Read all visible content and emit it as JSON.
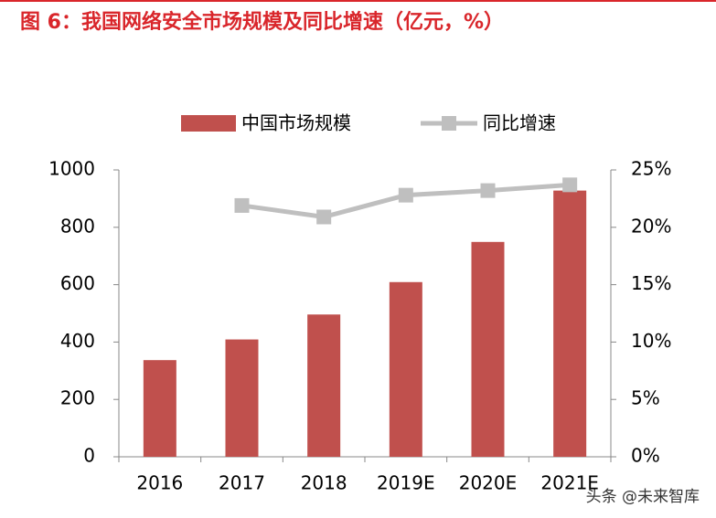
{
  "chart_data": {
    "type": "bar",
    "title": "图 6：我国网络安全市场规模及同比增速（亿元，%）",
    "categories": [
      "2016",
      "2017",
      "2018",
      "2019E",
      "2020E",
      "2021E"
    ],
    "series": [
      {
        "name": "中国市场规模",
        "type": "bar",
        "color": "#c0504d",
        "values": [
          337,
          409,
          496,
          609,
          749,
          928
        ]
      },
      {
        "name": "同比增速",
        "type": "line",
        "axis": "y2",
        "color": "#bfbfbf",
        "values": [
          null,
          21.9,
          20.9,
          22.8,
          23.2,
          23.7
        ]
      }
    ],
    "ylim": [
      0,
      1000
    ],
    "yticks": [
      0,
      200,
      400,
      600,
      800,
      1000
    ],
    "y2lim": [
      0,
      25
    ],
    "y2ticks": [
      {
        "value": 0,
        "label": "0%"
      },
      {
        "value": 5,
        "label": "5%"
      },
      {
        "value": 10,
        "label": "10%"
      },
      {
        "value": 15,
        "label": "15%"
      },
      {
        "value": 20,
        "label": "20%"
      },
      {
        "value": 25,
        "label": "25%"
      }
    ],
    "legend": "top",
    "watermark": "头条 @未来智库"
  }
}
